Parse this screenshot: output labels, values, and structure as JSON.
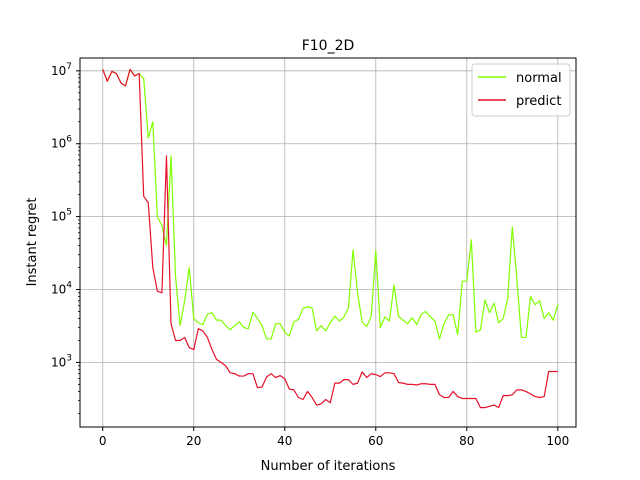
{
  "chart_data": {
    "type": "line",
    "title": "F10_2D",
    "xlabel": "Number of iterations",
    "ylabel": "Instant regret",
    "xlim": [
      -5,
      104
    ],
    "ylim": [
      130,
      15000000
    ],
    "yscale": "log",
    "grid": true,
    "legend_position": "top-right",
    "x_ticks": [
      0,
      20,
      40,
      60,
      80,
      100
    ],
    "y_ticks": [
      {
        "value": 1000,
        "base": "10",
        "exp": "3"
      },
      {
        "value": 10000,
        "base": "10",
        "exp": "4"
      },
      {
        "value": 100000,
        "base": "10",
        "exp": "5"
      },
      {
        "value": 1000000,
        "base": "10",
        "exp": "6"
      },
      {
        "value": 10000000,
        "base": "10",
        "exp": "7"
      }
    ],
    "series": [
      {
        "name": "normal",
        "color": "#7fff00",
        "values": [
          10500000,
          7200000,
          9800000,
          9200000,
          6800000,
          6200000,
          10500000,
          8500000,
          9200000,
          7800000,
          1200000,
          2000000,
          100000,
          75000,
          40000,
          680000,
          15000,
          3200,
          7000,
          20000,
          4000,
          3500,
          3300,
          4600,
          4800,
          3800,
          3800,
          3200,
          2800,
          3200,
          3600,
          3000,
          2900,
          4900,
          4000,
          3200,
          2100,
          2100,
          3400,
          3400,
          2600,
          2300,
          3600,
          3900,
          5500,
          5800,
          5600,
          2700,
          3200,
          2700,
          3500,
          4300,
          3700,
          4200,
          5600,
          35000,
          9000,
          3600,
          3100,
          4300,
          34000,
          3000,
          4200,
          3700,
          11500,
          4300,
          3800,
          3400,
          4100,
          3300,
          4600,
          5000,
          4200,
          3700,
          2100,
          3400,
          4500,
          4500,
          2400,
          13000,
          13000,
          48000,
          2600,
          2800,
          7200,
          4800,
          6500,
          3500,
          4000,
          7500,
          72000,
          14000,
          2200,
          2200,
          8000,
          6200,
          7000,
          4000,
          4800,
          3800,
          6200
        ]
      },
      {
        "name": "predict",
        "color": "#e8102a",
        "values": [
          10500000,
          7200000,
          9800000,
          9200000,
          6800000,
          6200000,
          10500000,
          8500000,
          9200000,
          190000,
          155000,
          20000,
          9500,
          9000,
          680000,
          3400,
          2000,
          2000,
          2200,
          1600,
          1500,
          2900,
          2700,
          2200,
          1500,
          1100,
          1000,
          900,
          720,
          700,
          650,
          650,
          700,
          700,
          450,
          460,
          630,
          700,
          620,
          660,
          600,
          430,
          420,
          330,
          310,
          400,
          330,
          260,
          270,
          310,
          280,
          520,
          520,
          580,
          580,
          500,
          520,
          740,
          620,
          700,
          680,
          640,
          720,
          720,
          700,
          530,
          520,
          500,
          500,
          490,
          510,
          510,
          500,
          500,
          360,
          330,
          330,
          400,
          340,
          320,
          320,
          320,
          320,
          240,
          240,
          250,
          260,
          240,
          350,
          350,
          360,
          420,
          420,
          400,
          370,
          340,
          330,
          340,
          750,
          750,
          750
        ]
      }
    ]
  }
}
